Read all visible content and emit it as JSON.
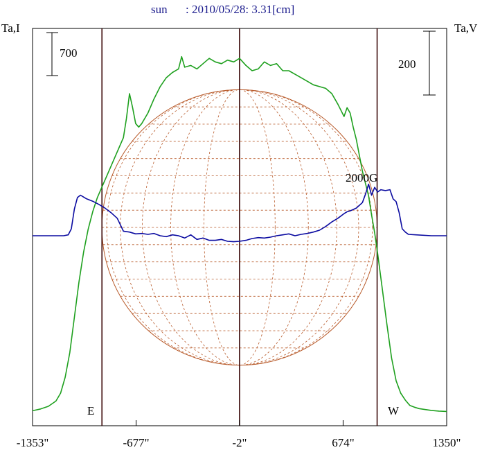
{
  "header": {
    "object_label": "sun",
    "info_label": ": 2010/05/28: 3.31[cm]"
  },
  "colors": {
    "header_text": "#1a1a8c",
    "intensity_line": "#1ea01e",
    "polarization_line": "#0a0aa0",
    "solar_disk": "#b85a2a",
    "limb_lines": "#3c0a0a",
    "frame": "#000000"
  },
  "chart_data": {
    "type": "line",
    "x_unit": "arcsec",
    "xlim": [
      -1353,
      1350
    ],
    "x_tick_values": [
      -1353,
      -677,
      -2,
      674,
      1350
    ],
    "x_tick_labels": [
      "-1353\"",
      "-677\"",
      "-2\"",
      "674\"",
      "1350\""
    ],
    "left_axis_label": "Ta,I",
    "right_axis_label": "Ta,V",
    "left_scale_bar_label": "700",
    "right_scale_bar_label": "200",
    "polarization_scale_label": "2000G",
    "limb_labels": {
      "east": "E",
      "west": "W"
    },
    "solar_limb_x": [
      -900,
      -2,
      896
    ],
    "series": [
      {
        "key": "intensity",
        "x": [
          -1353,
          -1300,
          -1250,
          -1200,
          -1170,
          -1140,
          -1110,
          -1080,
          -1050,
          -1020,
          -990,
          -960,
          -930,
          -900,
          -870,
          -840,
          -800,
          -760,
          -740,
          -720,
          -700,
          -680,
          -660,
          -640,
          -600,
          -560,
          -520,
          -480,
          -440,
          -400,
          -380,
          -360,
          -320,
          -280,
          -240,
          -200,
          -160,
          -120,
          -80,
          -40,
          -2,
          40,
          80,
          120,
          160,
          200,
          240,
          280,
          320,
          360,
          400,
          440,
          480,
          520,
          560,
          600,
          640,
          680,
          700,
          720,
          740,
          760,
          800,
          840,
          860,
          880,
          900,
          930,
          960,
          990,
          1020,
          1050,
          1080,
          1110,
          1140,
          1170,
          1200,
          1250,
          1300,
          1350
        ],
        "y": [
          30,
          40,
          55,
          85,
          130,
          220,
          360,
          560,
          760,
          930,
          1060,
          1160,
          1240,
          1300,
          1360,
          1420,
          1500,
          1580,
          1690,
          1830,
          1750,
          1660,
          1640,
          1660,
          1720,
          1800,
          1870,
          1920,
          1950,
          1970,
          2040,
          1980,
          1990,
          1970,
          2000,
          2030,
          2010,
          2000,
          2020,
          2010,
          2030,
          1990,
          1960,
          1970,
          2010,
          1990,
          2000,
          1960,
          1960,
          1940,
          1920,
          1900,
          1880,
          1870,
          1860,
          1830,
          1770,
          1700,
          1750,
          1720,
          1640,
          1570,
          1390,
          1250,
          1140,
          1040,
          920,
          720,
          520,
          330,
          200,
          130,
          90,
          60,
          50,
          42,
          38,
          32,
          28,
          26
        ],
        "ylim": [
          0,
          2200
        ]
      },
      {
        "key": "polarization_V",
        "x": [
          -1353,
          -1250,
          -1150,
          -1120,
          -1100,
          -1080,
          -1060,
          -1040,
          -1020,
          -1000,
          -960,
          -920,
          -880,
          -840,
          -800,
          -760,
          -720,
          -680,
          -640,
          -600,
          -560,
          -520,
          -480,
          -440,
          -400,
          -360,
          -320,
          -280,
          -240,
          -200,
          -160,
          -120,
          -80,
          -40,
          -2,
          40,
          80,
          120,
          160,
          200,
          240,
          280,
          320,
          360,
          400,
          440,
          480,
          520,
          560,
          600,
          640,
          680,
          700,
          720,
          760,
          800,
          820,
          840,
          860,
          880,
          900,
          920,
          950,
          980,
          1000,
          1020,
          1040,
          1060,
          1080,
          1100,
          1150,
          1250,
          1350
        ],
        "y": [
          0,
          0,
          0,
          2,
          15,
          58,
          83,
          88,
          84,
          80,
          75,
          68,
          60,
          50,
          38,
          10,
          8,
          4,
          5,
          3,
          5,
          0,
          -2,
          2,
          0,
          -5,
          2,
          -8,
          -5,
          -10,
          -10,
          -8,
          -12,
          -13,
          -12,
          -10,
          -6,
          -4,
          -5,
          -3,
          0,
          2,
          4,
          0,
          3,
          5,
          8,
          12,
          20,
          30,
          38,
          48,
          52,
          54,
          60,
          72,
          90,
          112,
          88,
          105,
          95,
          100,
          98,
          100,
          80,
          74,
          50,
          15,
          8,
          3,
          2,
          0,
          0
        ],
        "ylim": [
          -450,
          450
        ]
      }
    ]
  }
}
